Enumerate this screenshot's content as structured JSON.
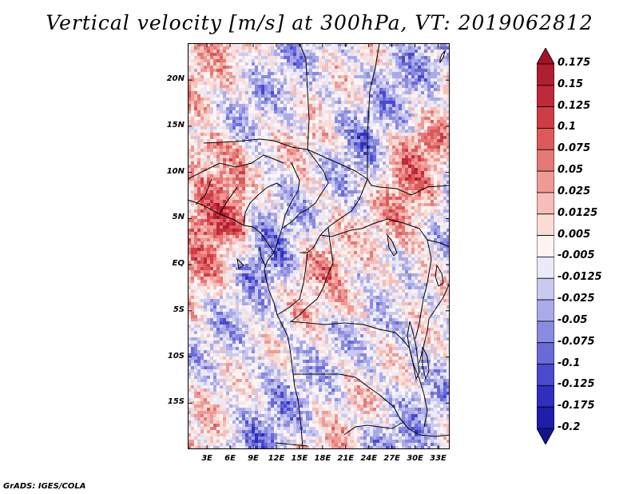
{
  "title": "Vertical velocity [m/s] at 300hPa, VT: 2019062812",
  "credit": "GrADS: IGES/COLA",
  "map": {
    "lat_range": [
      -20,
      24
    ],
    "lon_range": [
      0.5,
      34.5
    ],
    "lat_labels": [
      "20N",
      "15N",
      "10N",
      "5N",
      "EQ",
      "5S",
      "10S",
      "15S"
    ],
    "lat_values": [
      20,
      15,
      10,
      5,
      0,
      -5,
      -10,
      -15
    ],
    "lon_labels": [
      "3E",
      "6E",
      "9E",
      "12E",
      "15E",
      "18E",
      "21E",
      "24E",
      "27E",
      "30E",
      "33E"
    ],
    "lon_values": [
      3,
      6,
      9,
      12,
      15,
      18,
      21,
      24,
      27,
      30,
      33
    ]
  },
  "colorbar": {
    "labels": [
      "0.175",
      "0.15",
      "0.125",
      "0.1",
      "0.075",
      "0.05",
      "0.025",
      "0.0125",
      "0.005",
      "-0.005",
      "-0.0125",
      "-0.025",
      "-0.05",
      "-0.075",
      "-0.1",
      "-0.125",
      "-0.175",
      "-0.2"
    ],
    "colors": [
      "#a0142a",
      "#b01e32",
      "#c0283c",
      "#d03c46",
      "#dc5a5a",
      "#e67878",
      "#f09a96",
      "#f6beb8",
      "#fadcd6",
      "#fff4f2",
      "#eaeaf8",
      "#cacaf0",
      "#aaaaea",
      "#8a8ae0",
      "#6a6ad8",
      "#4a4ace",
      "#3030be",
      "#1e1eaa",
      "#14148c"
    ]
  }
}
